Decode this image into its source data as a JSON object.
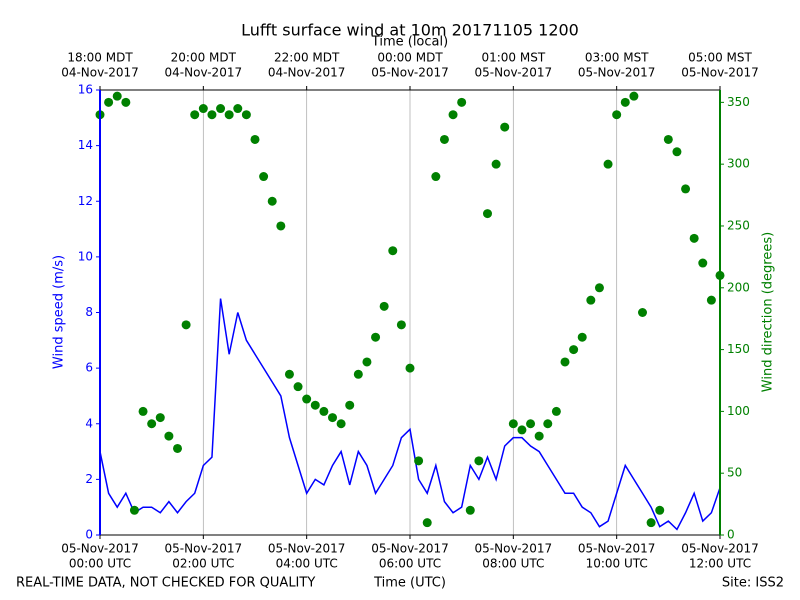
{
  "chart_data": {
    "type": "combo",
    "title": "Lufft surface wind at 10m 20171105 1200",
    "x_label": "Time (UTC)",
    "x2_label": "Time (local)",
    "y_label": "Wind speed (m/s)",
    "y2_label": "Wind direction (degrees)",
    "notes": {
      "left": "REAL-TIME DATA, NOT CHECKED FOR QUALITY",
      "right": "Site: ISS2"
    },
    "x": [
      "2017-11-05 00:00",
      "2017-11-05 00:10",
      "2017-11-05 00:20",
      "2017-11-05 00:30",
      "2017-11-05 00:40",
      "2017-11-05 00:50",
      "2017-11-05 01:00",
      "2017-11-05 01:10",
      "2017-11-05 01:20",
      "2017-11-05 01:30",
      "2017-11-05 01:40",
      "2017-11-05 01:50",
      "2017-11-05 02:00",
      "2017-11-05 02:10",
      "2017-11-05 02:20",
      "2017-11-05 02:30",
      "2017-11-05 02:40",
      "2017-11-05 02:50",
      "2017-11-05 03:00",
      "2017-11-05 03:10",
      "2017-11-05 03:20",
      "2017-11-05 03:30",
      "2017-11-05 03:40",
      "2017-11-05 03:50",
      "2017-11-05 04:00",
      "2017-11-05 04:10",
      "2017-11-05 04:20",
      "2017-11-05 04:30",
      "2017-11-05 04:40",
      "2017-11-05 04:50",
      "2017-11-05 05:00",
      "2017-11-05 05:10",
      "2017-11-05 05:20",
      "2017-11-05 05:30",
      "2017-11-05 05:40",
      "2017-11-05 05:50",
      "2017-11-05 06:00",
      "2017-11-05 06:10",
      "2017-11-05 06:20",
      "2017-11-05 06:30",
      "2017-11-05 06:40",
      "2017-11-05 06:50",
      "2017-11-05 07:00",
      "2017-11-05 07:10",
      "2017-11-05 07:20",
      "2017-11-05 07:30",
      "2017-11-05 07:40",
      "2017-11-05 07:50",
      "2017-11-05 08:00",
      "2017-11-05 08:10",
      "2017-11-05 08:20",
      "2017-11-05 08:30",
      "2017-11-05 08:40",
      "2017-11-05 08:50",
      "2017-11-05 09:00",
      "2017-11-05 09:10",
      "2017-11-05 09:20",
      "2017-11-05 09:30",
      "2017-11-05 09:40",
      "2017-11-05 09:50",
      "2017-11-05 10:00",
      "2017-11-05 10:10",
      "2017-11-05 10:20",
      "2017-11-05 10:30",
      "2017-11-05 10:40",
      "2017-11-05 10:50",
      "2017-11-05 11:00",
      "2017-11-05 11:10",
      "2017-11-05 11:20",
      "2017-11-05 11:30",
      "2017-11-05 11:40",
      "2017-11-05 11:50",
      "2017-11-05 12:00"
    ],
    "series": [
      {
        "name": "Wind speed",
        "type": "line",
        "axis": "y",
        "color": "#0000ff",
        "values": [
          3.0,
          1.5,
          1.0,
          1.5,
          0.8,
          1.0,
          1.0,
          0.8,
          1.2,
          0.8,
          1.2,
          1.5,
          2.5,
          2.8,
          8.5,
          6.5,
          8.0,
          7.0,
          6.5,
          6.0,
          5.5,
          5.0,
          3.5,
          2.5,
          1.5,
          2.0,
          1.8,
          2.5,
          3.0,
          1.8,
          3.0,
          2.5,
          1.5,
          2.0,
          2.5,
          3.5,
          3.8,
          2.0,
          1.5,
          2.5,
          1.2,
          0.8,
          1.0,
          2.5,
          2.0,
          2.8,
          2.0,
          3.2,
          3.5,
          3.5,
          3.2,
          3.0,
          2.5,
          2.0,
          1.5,
          1.5,
          1.0,
          0.8,
          0.3,
          0.5,
          1.5,
          2.5,
          2.0,
          1.5,
          1.0,
          0.3,
          0.5,
          0.2,
          0.8,
          1.5,
          0.5,
          0.8,
          1.7
        ]
      },
      {
        "name": "Wind direction",
        "type": "scatter",
        "axis": "y2",
        "color": "#008000",
        "values": [
          340,
          350,
          355,
          350,
          20,
          100,
          90,
          95,
          80,
          70,
          170,
          340,
          345,
          340,
          345,
          340,
          345,
          340,
          320,
          290,
          270,
          250,
          130,
          120,
          110,
          105,
          100,
          95,
          90,
          105,
          130,
          140,
          160,
          185,
          230,
          170,
          135,
          60,
          10,
          290,
          320,
          340,
          350,
          20,
          60,
          260,
          300,
          330,
          90,
          85,
          90,
          80,
          90,
          100,
          140,
          150,
          160,
          190,
          200,
          300,
          340,
          350,
          355,
          180,
          10,
          20,
          320,
          310,
          280,
          240,
          220,
          190,
          210
        ]
      }
    ],
    "xlim": [
      "2017-11-05 00:00",
      "2017-11-05 12:00"
    ],
    "xticks": [
      {
        "value": "2017-11-05 00:00",
        "label": [
          "05-Nov-2017",
          "00:00 UTC"
        ]
      },
      {
        "value": "2017-11-05 02:00",
        "label": [
          "05-Nov-2017",
          "02:00 UTC"
        ]
      },
      {
        "value": "2017-11-05 04:00",
        "label": [
          "05-Nov-2017",
          "04:00 UTC"
        ]
      },
      {
        "value": "2017-11-05 06:00",
        "label": [
          "05-Nov-2017",
          "06:00 UTC"
        ]
      },
      {
        "value": "2017-11-05 08:00",
        "label": [
          "05-Nov-2017",
          "08:00 UTC"
        ]
      },
      {
        "value": "2017-11-05 10:00",
        "label": [
          "05-Nov-2017",
          "10:00 UTC"
        ]
      },
      {
        "value": "2017-11-05 12:00",
        "label": [
          "05-Nov-2017",
          "12:00 UTC"
        ]
      }
    ],
    "x2ticks": [
      {
        "value": "2017-11-05 00:00",
        "label": [
          "18:00 MDT",
          "04-Nov-2017"
        ]
      },
      {
        "value": "2017-11-05 02:00",
        "label": [
          "20:00 MDT",
          "04-Nov-2017"
        ]
      },
      {
        "value": "2017-11-05 04:00",
        "label": [
          "22:00 MDT",
          "04-Nov-2017"
        ]
      },
      {
        "value": "2017-11-05 06:00",
        "label": [
          "00:00 MDT",
          "05-Nov-2017"
        ]
      },
      {
        "value": "2017-11-05 08:00",
        "label": [
          "01:00 MST",
          "05-Nov-2017"
        ]
      },
      {
        "value": "2017-11-05 10:00",
        "label": [
          "03:00 MST",
          "05-Nov-2017"
        ]
      },
      {
        "value": "2017-11-05 12:00",
        "label": [
          "05:00 MST",
          "05-Nov-2017"
        ]
      }
    ],
    "ylim": [
      0,
      16
    ],
    "yticks": [
      0,
      2,
      4,
      6,
      8,
      10,
      12,
      14,
      16
    ],
    "y2lim": [
      0,
      360
    ],
    "y2ticks": [
      0,
      50,
      100,
      150,
      200,
      250,
      300,
      350
    ],
    "grid": "x"
  }
}
